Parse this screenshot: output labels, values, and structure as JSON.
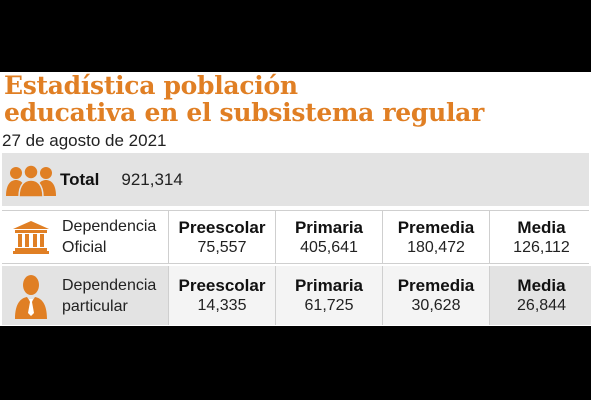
{
  "title": {
    "line1": "Estadística población",
    "line2": "educativa en el subsistema regular"
  },
  "date": "27 de agosto de 2021",
  "colors": {
    "accent": "#e07f24",
    "band": "#e3e3e3"
  },
  "total": {
    "icon": "people-group-icon",
    "label": "Total",
    "value": "921,314"
  },
  "rows": [
    {
      "icon": "government-building-icon",
      "label_line1": "Dependencia",
      "label_line2": "Oficial",
      "cells": [
        {
          "label": "Preescolar",
          "value": "75,557"
        },
        {
          "label": "Primaria",
          "value": "405,641"
        },
        {
          "label": "Premedia",
          "value": "180,472"
        },
        {
          "label": "Media",
          "value": "126,112"
        }
      ]
    },
    {
      "icon": "businessman-icon",
      "label_line1": "Dependencia",
      "label_line2": "particular",
      "cells": [
        {
          "label": "Preescolar",
          "value": "14,335"
        },
        {
          "label": "Primaria",
          "value": "61,725"
        },
        {
          "label": "Premedia",
          "value": "30,628"
        },
        {
          "label": "Media",
          "value": "26,844"
        }
      ]
    }
  ]
}
